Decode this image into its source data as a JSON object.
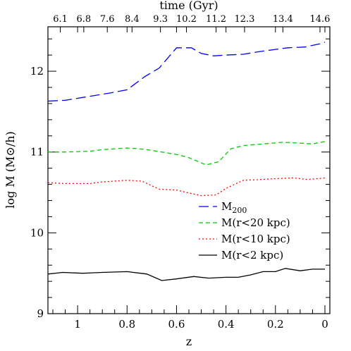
{
  "chart_data": {
    "type": "line",
    "xlabel": "z",
    "ylabel": "log M (M⊙/h)",
    "top_xlabel": "time (Gyr)",
    "xlim": [
      1.12,
      -0.02
    ],
    "ylim": [
      9,
      12.55
    ],
    "x_ticks": [
      1,
      0.8,
      0.6,
      0.4,
      0.2,
      0
    ],
    "x_tick_labels": [
      "1",
      "0.8",
      "0.6",
      "0.4",
      "0.2",
      "0"
    ],
    "y_ticks": [
      9,
      10,
      11,
      12
    ],
    "y_tick_labels": [
      "9",
      "10",
      "11",
      "12"
    ],
    "top_ticks": [
      {
        "label": "6.1",
        "z": 1.07
      },
      {
        "label": "6.8",
        "z": 0.975
      },
      {
        "label": "7.6",
        "z": 0.88
      },
      {
        "label": "8.4",
        "z": 0.78
      },
      {
        "label": "9.3",
        "z": 0.665
      },
      {
        "label": "10.2",
        "z": 0.56
      },
      {
        "label": "11.2",
        "z": 0.44
      },
      {
        "label": "12.3",
        "z": 0.325
      },
      {
        "label": "13.4",
        "z": 0.17
      },
      {
        "label": "14.6",
        "z": 0.02
      }
    ],
    "grid": false,
    "legend_position": "lower-right",
    "series": [
      {
        "name": "M200",
        "color": "#0000ff",
        "dash": "dashed-long",
        "x": [
          1.12,
          1.05,
          0.95,
          0.87,
          0.8,
          0.73,
          0.67,
          0.6,
          0.54,
          0.5,
          0.45,
          0.4,
          0.33,
          0.27,
          0.2,
          0.15,
          0.08,
          0.02,
          0.0
        ],
        "y": [
          11.63,
          11.64,
          11.69,
          11.73,
          11.77,
          11.93,
          12.04,
          12.29,
          12.29,
          12.22,
          12.19,
          12.2,
          12.21,
          12.24,
          12.27,
          12.29,
          12.3,
          12.34,
          12.36
        ]
      },
      {
        "name": "M(r<20 kpc)",
        "color": "#00cc00",
        "dash": "dashed-short",
        "x": [
          1.12,
          1.05,
          0.95,
          0.9,
          0.85,
          0.8,
          0.75,
          0.7,
          0.6,
          0.55,
          0.48,
          0.43,
          0.38,
          0.33,
          0.25,
          0.17,
          0.1,
          0.05,
          0.0
        ],
        "y": [
          11.0,
          11.0,
          11.01,
          11.03,
          11.04,
          11.05,
          11.04,
          11.02,
          10.97,
          10.93,
          10.84,
          10.88,
          11.04,
          11.08,
          11.1,
          11.12,
          11.11,
          11.1,
          11.13
        ]
      },
      {
        "name": "M(r<10 kpc)",
        "color": "#ff0000",
        "dash": "dotted",
        "x": [
          1.12,
          1.05,
          0.95,
          0.9,
          0.8,
          0.74,
          0.67,
          0.6,
          0.56,
          0.5,
          0.44,
          0.4,
          0.33,
          0.26,
          0.2,
          0.13,
          0.07,
          0.03,
          0.0
        ],
        "y": [
          10.62,
          10.61,
          10.61,
          10.63,
          10.65,
          10.64,
          10.54,
          10.53,
          10.5,
          10.46,
          10.47,
          10.55,
          10.65,
          10.66,
          10.67,
          10.68,
          10.66,
          10.67,
          10.68
        ]
      },
      {
        "name": "M(r<2 kpc)",
        "color": "#000000",
        "dash": "solid",
        "x": [
          1.12,
          1.06,
          0.98,
          0.9,
          0.8,
          0.72,
          0.66,
          0.6,
          0.53,
          0.47,
          0.4,
          0.35,
          0.3,
          0.25,
          0.2,
          0.16,
          0.1,
          0.05,
          0.0
        ],
        "y": [
          9.49,
          9.51,
          9.5,
          9.51,
          9.52,
          9.49,
          9.41,
          9.43,
          9.46,
          9.44,
          9.45,
          9.45,
          9.48,
          9.52,
          9.52,
          9.56,
          9.53,
          9.55,
          9.55
        ]
      }
    ]
  }
}
